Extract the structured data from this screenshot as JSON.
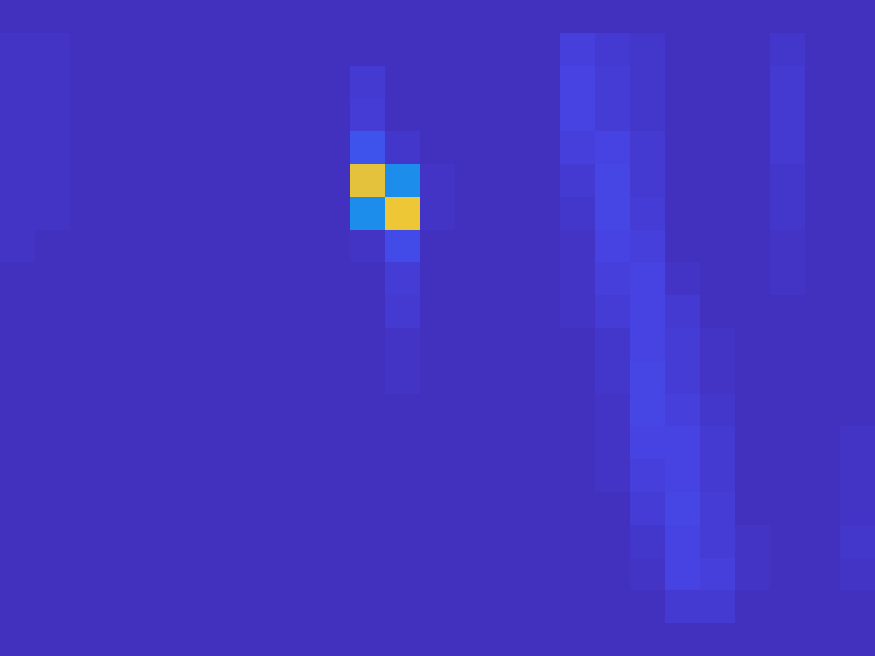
{
  "chart_data": {
    "type": "heatmap",
    "tick_labels": false,
    "zlim": [
      0,
      1
    ],
    "cells": [
      [
        0.04,
        0.04,
        0.04,
        0.04,
        0.04,
        0.04,
        0.04,
        0.04,
        0.04,
        0.04,
        0.04,
        0.04,
        0.04,
        0.04,
        0.04,
        0.04,
        0.04,
        0.04,
        0.04,
        0.04,
        0.04,
        0.04,
        0.04,
        0.04,
        0.04
      ],
      [
        0.05,
        0.05,
        0.04,
        0.04,
        0.04,
        0.04,
        0.04,
        0.04,
        0.04,
        0.04,
        0.04,
        0.04,
        0.04,
        0.04,
        0.04,
        0.04,
        0.09,
        0.07,
        0.06,
        0.04,
        0.04,
        0.04,
        0.06,
        0.04,
        0.04
      ],
      [
        0.05,
        0.05,
        0.04,
        0.04,
        0.04,
        0.04,
        0.04,
        0.04,
        0.04,
        0.04,
        0.07,
        0.04,
        0.04,
        0.04,
        0.04,
        0.04,
        0.1,
        0.08,
        0.06,
        0.04,
        0.04,
        0.04,
        0.07,
        0.04,
        0.04
      ],
      [
        0.05,
        0.05,
        0.04,
        0.04,
        0.04,
        0.04,
        0.04,
        0.04,
        0.04,
        0.04,
        0.08,
        0.04,
        0.04,
        0.04,
        0.04,
        0.04,
        0.1,
        0.08,
        0.06,
        0.04,
        0.04,
        0.04,
        0.07,
        0.04,
        0.04
      ],
      [
        0.05,
        0.05,
        0.04,
        0.04,
        0.04,
        0.04,
        0.04,
        0.04,
        0.04,
        0.04,
        0.14,
        0.06,
        0.04,
        0.04,
        0.04,
        0.04,
        0.09,
        0.1,
        0.07,
        0.04,
        0.04,
        0.04,
        0.07,
        0.04,
        0.04
      ],
      [
        0.05,
        0.05,
        0.04,
        0.04,
        0.04,
        0.04,
        0.04,
        0.04,
        0.04,
        0.04,
        0.82,
        0.3,
        0.05,
        0.04,
        0.04,
        0.04,
        0.07,
        0.11,
        0.07,
        0.04,
        0.04,
        0.04,
        0.06,
        0.04,
        0.04
      ],
      [
        0.05,
        0.05,
        0.04,
        0.04,
        0.04,
        0.04,
        0.04,
        0.04,
        0.04,
        0.04,
        0.3,
        0.85,
        0.05,
        0.04,
        0.04,
        0.04,
        0.06,
        0.11,
        0.08,
        0.04,
        0.04,
        0.04,
        0.06,
        0.04,
        0.04
      ],
      [
        0.05,
        0.04,
        0.04,
        0.04,
        0.04,
        0.04,
        0.04,
        0.04,
        0.04,
        0.04,
        0.05,
        0.12,
        0.04,
        0.04,
        0.04,
        0.04,
        0.05,
        0.1,
        0.09,
        0.04,
        0.04,
        0.04,
        0.05,
        0.04,
        0.04
      ],
      [
        0.04,
        0.04,
        0.04,
        0.04,
        0.04,
        0.04,
        0.04,
        0.04,
        0.04,
        0.04,
        0.04,
        0.08,
        0.04,
        0.04,
        0.04,
        0.04,
        0.05,
        0.09,
        0.1,
        0.05,
        0.04,
        0.04,
        0.05,
        0.04,
        0.04
      ],
      [
        0.04,
        0.04,
        0.04,
        0.04,
        0.04,
        0.04,
        0.04,
        0.04,
        0.04,
        0.04,
        0.04,
        0.07,
        0.04,
        0.04,
        0.04,
        0.04,
        0.05,
        0.08,
        0.1,
        0.07,
        0.04,
        0.04,
        0.04,
        0.04,
        0.04
      ],
      [
        0.04,
        0.04,
        0.04,
        0.04,
        0.04,
        0.04,
        0.04,
        0.04,
        0.04,
        0.04,
        0.04,
        0.05,
        0.04,
        0.04,
        0.04,
        0.04,
        0.04,
        0.06,
        0.1,
        0.08,
        0.05,
        0.04,
        0.04,
        0.04,
        0.04
      ],
      [
        0.04,
        0.04,
        0.04,
        0.04,
        0.04,
        0.04,
        0.04,
        0.04,
        0.04,
        0.04,
        0.04,
        0.05,
        0.04,
        0.04,
        0.04,
        0.04,
        0.04,
        0.06,
        0.11,
        0.08,
        0.05,
        0.04,
        0.04,
        0.04,
        0.04
      ],
      [
        0.04,
        0.04,
        0.04,
        0.04,
        0.04,
        0.04,
        0.04,
        0.04,
        0.04,
        0.04,
        0.04,
        0.04,
        0.04,
        0.04,
        0.04,
        0.04,
        0.04,
        0.05,
        0.11,
        0.09,
        0.06,
        0.04,
        0.04,
        0.04,
        0.04
      ],
      [
        0.04,
        0.04,
        0.04,
        0.04,
        0.04,
        0.04,
        0.04,
        0.04,
        0.04,
        0.04,
        0.04,
        0.04,
        0.04,
        0.04,
        0.04,
        0.04,
        0.04,
        0.05,
        0.1,
        0.1,
        0.07,
        0.04,
        0.04,
        0.04,
        0.05
      ],
      [
        0.04,
        0.04,
        0.04,
        0.04,
        0.04,
        0.04,
        0.04,
        0.04,
        0.04,
        0.04,
        0.04,
        0.04,
        0.04,
        0.04,
        0.04,
        0.04,
        0.04,
        0.05,
        0.09,
        0.1,
        0.07,
        0.04,
        0.04,
        0.04,
        0.05
      ],
      [
        0.04,
        0.04,
        0.04,
        0.04,
        0.04,
        0.04,
        0.04,
        0.04,
        0.04,
        0.04,
        0.04,
        0.04,
        0.04,
        0.04,
        0.04,
        0.04,
        0.04,
        0.04,
        0.08,
        0.11,
        0.08,
        0.04,
        0.04,
        0.04,
        0.05
      ],
      [
        0.04,
        0.04,
        0.04,
        0.04,
        0.04,
        0.04,
        0.04,
        0.04,
        0.04,
        0.04,
        0.04,
        0.04,
        0.04,
        0.04,
        0.04,
        0.04,
        0.04,
        0.04,
        0.06,
        0.1,
        0.08,
        0.05,
        0.04,
        0.04,
        0.06
      ],
      [
        0.04,
        0.04,
        0.04,
        0.04,
        0.04,
        0.04,
        0.04,
        0.04,
        0.04,
        0.04,
        0.04,
        0.04,
        0.04,
        0.04,
        0.04,
        0.04,
        0.04,
        0.04,
        0.05,
        0.1,
        0.09,
        0.05,
        0.04,
        0.04,
        0.05
      ],
      [
        0.04,
        0.04,
        0.04,
        0.04,
        0.04,
        0.04,
        0.04,
        0.04,
        0.04,
        0.04,
        0.04,
        0.04,
        0.04,
        0.04,
        0.04,
        0.04,
        0.04,
        0.04,
        0.04,
        0.07,
        0.07,
        0.04,
        0.04,
        0.04,
        0.04
      ],
      [
        0.04,
        0.04,
        0.04,
        0.04,
        0.04,
        0.04,
        0.04,
        0.04,
        0.04,
        0.04,
        0.04,
        0.04,
        0.04,
        0.04,
        0.04,
        0.04,
        0.04,
        0.04,
        0.04,
        0.04,
        0.04,
        0.04,
        0.04,
        0.04,
        0.04
      ]
    ]
  }
}
